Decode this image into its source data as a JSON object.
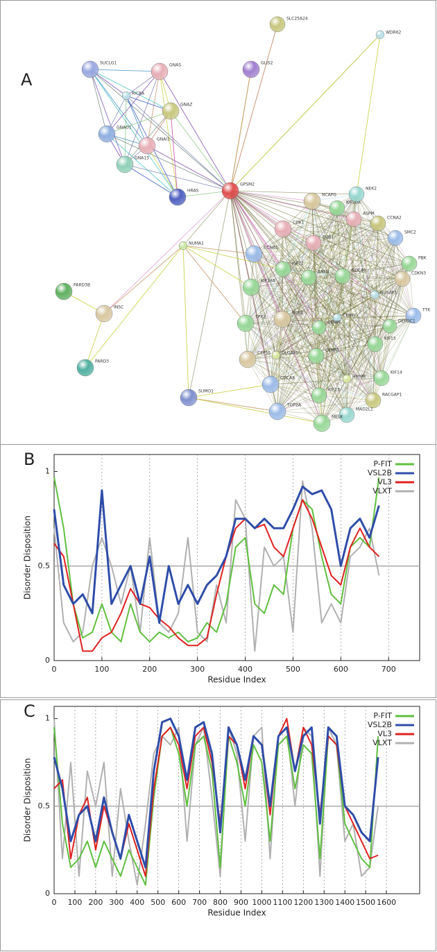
{
  "network": {
    "panel_label": "A",
    "nodes": [
      {
        "label": "SUCLG1"
      },
      {
        "label": "GNAS"
      },
      {
        "label": "RIC8A"
      },
      {
        "label": "GNAZ"
      },
      {
        "label": "GNAO1"
      },
      {
        "label": "GNAI1"
      },
      {
        "label": "GNA13"
      },
      {
        "label": "HRAS"
      },
      {
        "label": "GPSM2"
      },
      {
        "label": "NCAPG"
      },
      {
        "label": "KIF20A"
      },
      {
        "label": "NEK2"
      },
      {
        "label": "ASPM"
      },
      {
        "label": "CCNA2"
      },
      {
        "label": "SMC2"
      },
      {
        "label": "CDK1"
      },
      {
        "label": "PBK"
      },
      {
        "label": "CCNB1"
      },
      {
        "label": "BUB1"
      },
      {
        "label": "NDC80"
      },
      {
        "label": "CDKN3"
      },
      {
        "label": "KIF11"
      },
      {
        "label": "KIF18A"
      },
      {
        "label": "ANLN"
      },
      {
        "label": "NUSAP1"
      },
      {
        "label": "TTK"
      },
      {
        "label": "DEPDC1"
      },
      {
        "label": "NUF2"
      },
      {
        "label": "CENPF"
      },
      {
        "label": "TPX2"
      },
      {
        "label": "CENPE"
      },
      {
        "label": "CEP55"
      },
      {
        "label": "DLGAP5"
      },
      {
        "label": "CENPA"
      },
      {
        "label": "KIF15"
      },
      {
        "label": "KIF14"
      },
      {
        "label": "CDCA8"
      },
      {
        "label": "HMMR"
      },
      {
        "label": "KIF23"
      },
      {
        "label": "RACGAP1"
      },
      {
        "label": "TOP2A"
      },
      {
        "label": "MAD2L1"
      },
      {
        "label": "MELK"
      },
      {
        "label": "NUMA1"
      },
      {
        "label": "PARD3B"
      },
      {
        "label": "INSC"
      },
      {
        "label": "PARD3"
      },
      {
        "label": "SUMO1"
      },
      {
        "label": "SLC25A24"
      },
      {
        "label": "WDR62"
      },
      {
        "label": "GLIS2"
      }
    ]
  },
  "chart_data": [
    {
      "type": "line",
      "panel_label": "B",
      "x_label": "Residue Index",
      "y_label": "Disorder Disposition",
      "x": [
        0,
        20,
        40,
        60,
        80,
        100,
        120,
        140,
        160,
        180,
        200,
        220,
        240,
        260,
        280,
        300,
        320,
        340,
        360,
        380,
        400,
        420,
        440,
        460,
        480,
        500,
        520,
        540,
        560,
        580,
        600,
        620,
        640,
        660,
        680
      ],
      "series": [
        {
          "name": "P-FIT",
          "color": "#5fbf3f",
          "values": [
            0.97,
            0.7,
            0.3,
            0.12,
            0.15,
            0.3,
            0.15,
            0.1,
            0.3,
            0.15,
            0.1,
            0.15,
            0.12,
            0.15,
            0.1,
            0.12,
            0.2,
            0.15,
            0.3,
            0.6,
            0.65,
            0.3,
            0.25,
            0.4,
            0.35,
            0.7,
            0.85,
            0.8,
            0.55,
            0.35,
            0.3,
            0.6,
            0.65,
            0.6,
            0.97
          ]
        },
        {
          "name": "VSL2B",
          "color": "#2e4da8",
          "values": [
            0.8,
            0.4,
            0.3,
            0.35,
            0.25,
            0.9,
            0.3,
            0.4,
            0.5,
            0.3,
            0.55,
            0.2,
            0.5,
            0.3,
            0.4,
            0.3,
            0.4,
            0.45,
            0.55,
            0.75,
            0.75,
            0.7,
            0.75,
            0.7,
            0.7,
            0.8,
            0.92,
            0.88,
            0.9,
            0.8,
            0.5,
            0.7,
            0.75,
            0.65,
            0.82
          ]
        },
        {
          "name": "VL3",
          "color": "#e02020",
          "values": [
            0.62,
            0.55,
            0.3,
            0.05,
            0.05,
            0.12,
            0.15,
            0.25,
            0.38,
            0.3,
            0.28,
            0.22,
            0.18,
            0.12,
            0.08,
            0.08,
            0.12,
            0.35,
            0.55,
            0.7,
            0.75,
            0.7,
            0.72,
            0.6,
            0.55,
            0.7,
            0.85,
            0.75,
            0.6,
            0.45,
            0.4,
            0.6,
            0.7,
            0.6,
            0.55
          ]
        },
        {
          "name": "VLXT",
          "color": "#b0b0b0",
          "values": [
            0.7,
            0.2,
            0.1,
            0.15,
            0.5,
            0.65,
            0.5,
            0.3,
            0.5,
            0.15,
            0.65,
            0.2,
            0.15,
            0.25,
            0.65,
            0.15,
            0.1,
            0.4,
            0.2,
            0.85,
            0.75,
            0.05,
            0.6,
            0.5,
            0.55,
            0.15,
            0.95,
            0.7,
            0.2,
            0.3,
            0.2,
            0.55,
            0.6,
            0.7,
            0.45
          ]
        }
      ],
      "xlim": [
        0,
        765
      ],
      "xticks": [
        0,
        100,
        200,
        300,
        400,
        500,
        600,
        700
      ],
      "ylim": [
        0,
        1.09
      ],
      "yticks": [
        0,
        0.5,
        1
      ],
      "reference_line": 0.5,
      "grid": true
    },
    {
      "type": "line",
      "panel_label": "C",
      "x_label": "Residue Index",
      "y_label": "Disorder Disposition",
      "x": [
        0,
        40,
        80,
        120,
        160,
        200,
        240,
        280,
        320,
        360,
        400,
        440,
        480,
        520,
        560,
        600,
        640,
        680,
        720,
        760,
        800,
        840,
        880,
        920,
        960,
        1000,
        1040,
        1080,
        1120,
        1160,
        1200,
        1240,
        1280,
        1320,
        1360,
        1400,
        1440,
        1480,
        1520,
        1560
      ],
      "series": [
        {
          "name": "P-FIT",
          "color": "#5fbf3f",
          "values": [
            0.95,
            0.4,
            0.15,
            0.2,
            0.3,
            0.15,
            0.3,
            0.2,
            0.1,
            0.25,
            0.15,
            0.05,
            0.55,
            0.9,
            0.95,
            0.8,
            0.5,
            0.85,
            0.9,
            0.7,
            0.15,
            0.9,
            0.75,
            0.5,
            0.85,
            0.75,
            0.3,
            0.85,
            0.9,
            0.6,
            0.85,
            0.8,
            0.2,
            0.9,
            0.85,
            0.4,
            0.3,
            0.2,
            0.15,
            0.9
          ]
        },
        {
          "name": "VSL2B",
          "color": "#2e4da8",
          "values": [
            0.78,
            0.6,
            0.3,
            0.45,
            0.5,
            0.3,
            0.55,
            0.35,
            0.2,
            0.45,
            0.3,
            0.15,
            0.7,
            0.98,
            1.0,
            0.9,
            0.65,
            0.95,
            0.98,
            0.8,
            0.35,
            0.95,
            0.85,
            0.65,
            0.9,
            0.85,
            0.5,
            0.9,
            0.95,
            0.7,
            0.9,
            0.95,
            0.4,
            0.95,
            0.9,
            0.5,
            0.45,
            0.35,
            0.3,
            0.78
          ]
        },
        {
          "name": "VL3",
          "color": "#e02020",
          "values": [
            0.6,
            0.65,
            0.2,
            0.45,
            0.55,
            0.25,
            0.5,
            0.35,
            0.2,
            0.4,
            0.25,
            0.1,
            0.6,
            0.9,
            0.95,
            0.85,
            0.6,
            0.9,
            0.95,
            0.75,
            0.4,
            0.9,
            0.85,
            0.6,
            0.9,
            0.85,
            0.45,
            0.9,
            1.0,
            0.7,
            0.95,
            0.85,
            0.45,
            0.9,
            0.85,
            0.5,
            0.4,
            0.3,
            0.2,
            0.22
          ]
        },
        {
          "name": "VLXT",
          "color": "#b0b0b0",
          "values": [
            1.0,
            0.2,
            0.75,
            0.1,
            0.7,
            0.5,
            0.75,
            0.1,
            0.6,
            0.3,
            0.05,
            0.4,
            0.8,
            0.9,
            0.85,
            0.95,
            0.3,
            0.85,
            0.95,
            0.55,
            0.1,
            0.95,
            0.8,
            0.3,
            0.9,
            0.95,
            0.2,
            0.9,
            0.95,
            0.5,
            0.95,
            0.9,
            0.1,
            0.95,
            0.85,
            0.3,
            0.4,
            0.1,
            0.15,
            0.5
          ]
        }
      ],
      "xlim": [
        0,
        1760
      ],
      "xticks": [
        0,
        100,
        200,
        300,
        400,
        500,
        600,
        700,
        800,
        900,
        1000,
        1100,
        1200,
        1300,
        1400,
        1500,
        1600
      ],
      "ylim": [
        0,
        1.07
      ],
      "yticks": [
        0,
        0.5,
        1
      ],
      "reference_line": 0.5,
      "grid": true
    }
  ]
}
